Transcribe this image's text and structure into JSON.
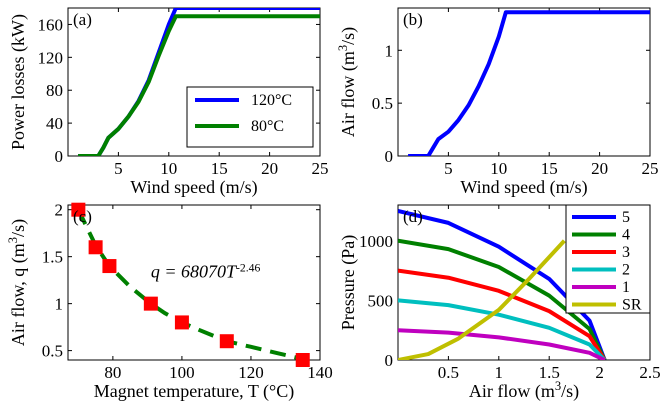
{
  "chart_data": [
    {
      "type": "line",
      "panel_label": "(a)",
      "xlabel": "Wind speed (m/s)",
      "ylabel": "Power losses (kW)",
      "xlim": [
        0,
        25
      ],
      "ylim": [
        0,
        180
      ],
      "xticks": [
        5,
        10,
        15,
        20,
        25
      ],
      "yticks": [
        0,
        40,
        80,
        120,
        160
      ],
      "grid": false,
      "legend_position": "center-right",
      "series": [
        {
          "name": "120°C",
          "color": "#0000ff",
          "x": [
            1,
            2,
            3,
            3.5,
            4,
            5,
            6,
            7,
            8,
            9,
            10,
            10.7,
            11,
            25
          ],
          "y": [
            0,
            0,
            0,
            10,
            22,
            33,
            48,
            67,
            92,
            126,
            160,
            180,
            180,
            180
          ]
        },
        {
          "name": "80°C",
          "color": "#008000",
          "x": [
            1,
            2,
            3,
            3.5,
            4,
            5,
            6,
            7,
            8,
            9,
            10,
            10.7,
            11,
            25
          ],
          "y": [
            0,
            0,
            0,
            10,
            22,
            33,
            48,
            66,
            90,
            122,
            152,
            170,
            170,
            170
          ]
        }
      ]
    },
    {
      "type": "line",
      "panel_label": "(b)",
      "xlabel": "Wind speed (m/s)",
      "ylabel": "Air flow (m3/s)",
      "xlim": [
        0,
        25
      ],
      "ylim": [
        0,
        1.4
      ],
      "xticks": [
        5,
        10,
        15,
        20,
        25
      ],
      "yticks": [
        0,
        0.5,
        1
      ],
      "grid": false,
      "series": [
        {
          "color": "#0000ff",
          "x": [
            1,
            2,
            3,
            3.5,
            4,
            5,
            6,
            7,
            8,
            9,
            10,
            10.7,
            11,
            25
          ],
          "y": [
            0,
            0,
            0,
            0.08,
            0.16,
            0.23,
            0.34,
            0.48,
            0.66,
            0.87,
            1.13,
            1.36,
            1.36,
            1.36
          ]
        }
      ]
    },
    {
      "type": "scatter",
      "panel_label": "(c)",
      "xlabel": "Magnet temperature, T (°C)",
      "ylabel": "Air flow, q (m3/s)",
      "xlim": [
        67,
        140
      ],
      "ylim": [
        0.4,
        2.05
      ],
      "xticks": [
        80,
        100,
        120,
        140
      ],
      "yticks": [
        0.5,
        1,
        1.5,
        2
      ],
      "grid": false,
      "annotation": "q = 68070T^-2.46",
      "points": {
        "color": "#ff0000",
        "x": [
          70,
          75,
          79,
          91,
          100,
          113,
          135
        ],
        "y": [
          2.0,
          1.6,
          1.4,
          1.0,
          0.8,
          0.6,
          0.4
        ]
      },
      "fit": {
        "color": "#008000",
        "dashed": true,
        "x": [
          70,
          75,
          79,
          85,
          91,
          95,
          100,
          105,
          113,
          120,
          128,
          135
        ],
        "y": [
          2.0,
          1.62,
          1.4,
          1.18,
          1.0,
          0.9,
          0.8,
          0.72,
          0.6,
          0.54,
          0.47,
          0.41
        ]
      }
    },
    {
      "type": "line",
      "panel_label": "(d)",
      "xlabel": "Air flow (m3/s)",
      "ylabel": "Pressure (Pa)",
      "xlim": [
        0,
        2.5
      ],
      "ylim": [
        0,
        1300
      ],
      "xticks": [
        0.5,
        1,
        1.5,
        2,
        2.5
      ],
      "yticks": [
        0,
        500,
        1000
      ],
      "grid": false,
      "legend_position": "top-right",
      "series": [
        {
          "name": "5",
          "color": "#0000ff",
          "x": [
            0,
            0.5,
            1,
            1.5,
            1.9,
            2.05
          ],
          "y": [
            1250,
            1150,
            950,
            680,
            330,
            0
          ]
        },
        {
          "name": "4",
          "color": "#008000",
          "x": [
            0,
            0.5,
            1,
            1.5,
            1.9,
            2.05
          ],
          "y": [
            1000,
            930,
            780,
            540,
            260,
            0
          ]
        },
        {
          "name": "3",
          "color": "#ff0000",
          "x": [
            0,
            0.5,
            1,
            1.5,
            1.9,
            2.05
          ],
          "y": [
            750,
            690,
            580,
            410,
            200,
            0
          ]
        },
        {
          "name": "2",
          "color": "#00bfbf",
          "x": [
            0,
            0.5,
            1,
            1.5,
            1.9,
            2.05
          ],
          "y": [
            500,
            460,
            380,
            270,
            130,
            0
          ]
        },
        {
          "name": "1",
          "color": "#bf00bf",
          "x": [
            0,
            0.5,
            1,
            1.5,
            1.9,
            2.05
          ],
          "y": [
            250,
            230,
            190,
            130,
            60,
            0
          ]
        },
        {
          "name": "SR",
          "color": "#bfbf00",
          "x": [
            0,
            0.3,
            0.6,
            1.0,
            1.3,
            1.65
          ],
          "y": [
            0,
            50,
            180,
            420,
            680,
            1000
          ]
        }
      ]
    }
  ]
}
